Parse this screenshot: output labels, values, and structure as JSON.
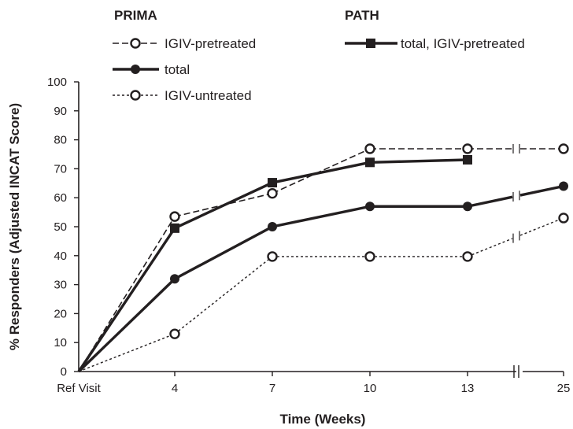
{
  "chart_data": {
    "type": "line",
    "xlabel": "Time (Weeks)",
    "ylabel": "% Responders (Adjusted INCAT Score)",
    "categories": [
      "Ref Visit",
      "4",
      "7",
      "10",
      "13",
      "25"
    ],
    "ylim": [
      0,
      100
    ],
    "yticks": [
      0,
      10,
      20,
      30,
      40,
      50,
      60,
      70,
      80,
      90,
      100
    ],
    "axis_break_after": "13",
    "groups": [
      "PRIMA",
      "PATH"
    ],
    "series": [
      {
        "name": "IGIV-pretreated",
        "group": "PRIMA",
        "style": "long-dash",
        "marker": "open-circle",
        "values": [
          0,
          53.5,
          61.5,
          76.9,
          76.9,
          76.9
        ]
      },
      {
        "name": "total",
        "group": "PRIMA",
        "style": "solid-thick",
        "marker": "filled-circle",
        "values": [
          0,
          32,
          50,
          57,
          57,
          64
        ]
      },
      {
        "name": "IGIV-untreated",
        "group": "PRIMA",
        "style": "short-dash",
        "marker": "open-circle",
        "values": [
          0,
          13,
          39.7,
          39.7,
          39.7,
          53
        ]
      },
      {
        "name": "total, IGIV-pretreated",
        "group": "PATH",
        "style": "solid-thick",
        "marker": "filled-square",
        "values": [
          0,
          49.5,
          65.2,
          72.2,
          73.1,
          null
        ]
      }
    ],
    "grid": false,
    "legend": "top",
    "color": "#231f20"
  }
}
